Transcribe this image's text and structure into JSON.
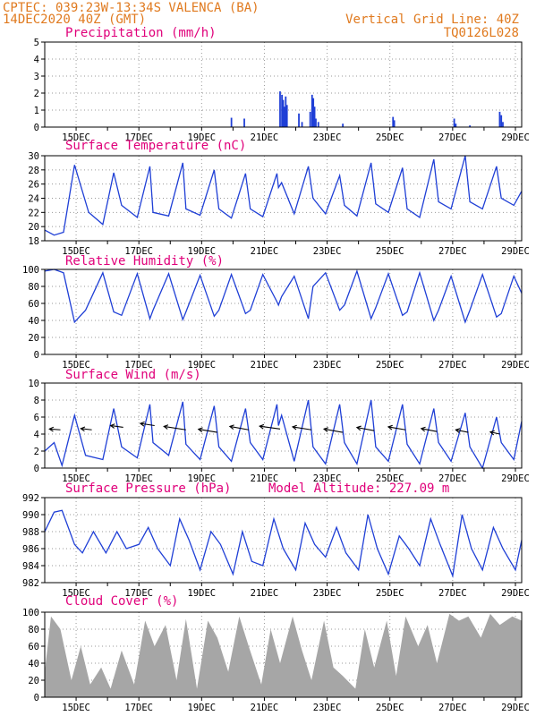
{
  "header": {
    "left_line1": "CPTEC:   039:23W-13:34S  VALENCA (BA)",
    "left_line2": "14DEC2020 40Z (GMT)",
    "right_line1": "Vertical Grid Line: 40Z",
    "right_line2": "TQ0126L028"
  },
  "x_tick_labels": [
    "15DEC",
    "17DEC",
    "19DEC",
    "21DEC",
    "23DEC",
    "25DEC",
    "27DEC",
    "29DEC"
  ],
  "colors": {
    "series": "#1f3fd6",
    "title": "#e0007a",
    "header": "#e07a1f",
    "cloud": "#a6a6a6"
  },
  "chart_data": [
    {
      "id": "precip",
      "type": "bar",
      "title": "Precipitation (mm/h)",
      "xlabel": "",
      "ylabel": "mm/h",
      "ylim": [
        0,
        5
      ],
      "yticks": [
        0,
        1,
        2,
        3,
        4,
        5
      ],
      "x_unit": "days since 14DEC 00Z",
      "x": [
        5.95,
        6.36,
        7.5,
        7.56,
        7.6,
        7.64,
        7.68,
        7.72,
        8.1,
        8.2,
        8.46,
        8.52,
        8.56,
        8.6,
        8.64,
        8.72,
        9.5,
        11.1,
        11.14,
        13.05,
        13.1,
        14.5,
        14.55,
        14.6,
        13.55
      ],
      "values": [
        0.55,
        0.5,
        2.1,
        1.9,
        1.6,
        1.2,
        1.8,
        1.3,
        0.8,
        0.3,
        0.9,
        1.9,
        1.7,
        1.2,
        0.5,
        0.3,
        0.2,
        0.6,
        0.4,
        0.5,
        0.2,
        0.9,
        0.7,
        0.3,
        0.1
      ]
    },
    {
      "id": "temperature",
      "type": "line",
      "title": "Surface Temperature (nC)",
      "xlabel": "",
      "ylabel": "nC",
      "ylim": [
        18,
        30
      ],
      "yticks": [
        18,
        20,
        22,
        24,
        26,
        28,
        30
      ],
      "x": [
        0,
        0.3,
        0.6,
        0.95,
        1.4,
        1.85,
        2.2,
        2.45,
        2.95,
        3.35,
        3.45,
        3.95,
        4.4,
        4.5,
        4.95,
        5.4,
        5.55,
        5.95,
        6.4,
        6.55,
        6.95,
        7.4,
        7.45,
        7.55,
        7.95,
        8.4,
        8.55,
        8.95,
        9.4,
        9.55,
        9.95,
        10.4,
        10.55,
        10.95,
        11.4,
        11.55,
        11.95,
        12.4,
        12.55,
        12.95,
        13.4,
        13.55,
        13.95,
        14.4,
        14.55,
        14.95,
        15.2
      ],
      "values": [
        19.5,
        18.8,
        19.2,
        28.7,
        22.0,
        20.3,
        27.6,
        23.0,
        21.3,
        28.5,
        22.0,
        21.5,
        29.0,
        22.5,
        21.6,
        28.0,
        22.5,
        21.2,
        27.5,
        22.5,
        21.4,
        27.5,
        25.5,
        26.2,
        21.8,
        28.5,
        24.0,
        21.8,
        27.2,
        23.0,
        21.5,
        29.0,
        23.2,
        22.0,
        28.3,
        22.5,
        21.3,
        29.5,
        23.5,
        22.5,
        30.0,
        23.5,
        22.5,
        28.5,
        24.0,
        23.0,
        25.0
      ]
    },
    {
      "id": "humidity",
      "type": "line",
      "title": "Relative Humidity (%)",
      "xlabel": "",
      "ylabel": "%",
      "ylim": [
        0,
        100
      ],
      "yticks": [
        0,
        20,
        40,
        60,
        80,
        100
      ],
      "x": [
        0,
        0.3,
        0.6,
        0.95,
        1.3,
        1.85,
        2.2,
        2.45,
        2.95,
        3.35,
        3.45,
        3.95,
        4.4,
        4.5,
        4.95,
        5.4,
        5.55,
        5.95,
        6.4,
        6.55,
        6.95,
        7.4,
        7.45,
        7.55,
        7.95,
        8.4,
        8.55,
        8.95,
        9.4,
        9.55,
        9.95,
        10.4,
        10.55,
        10.95,
        11.4,
        11.55,
        11.95,
        12.4,
        12.55,
        12.95,
        13.4,
        13.55,
        13.95,
        14.4,
        14.55,
        14.95,
        15.2
      ],
      "values": [
        98,
        100,
        96,
        38,
        52,
        96,
        50,
        46,
        95,
        42,
        52,
        95,
        41,
        50,
        93,
        45,
        52,
        94,
        48,
        52,
        94,
        62,
        58,
        68,
        92,
        42,
        80,
        96,
        52,
        58,
        98,
        42,
        55,
        95,
        46,
        50,
        96,
        40,
        52,
        92,
        38,
        52,
        94,
        44,
        48,
        92,
        72
      ]
    },
    {
      "id": "wind",
      "type": "line",
      "title": "Surface Wind (m/s)",
      "xlabel": "",
      "ylabel": "m/s",
      "ylim": [
        0,
        10
      ],
      "yticks": [
        0,
        2,
        4,
        6,
        8,
        10
      ],
      "x": [
        0,
        0.3,
        0.55,
        0.95,
        1.3,
        1.85,
        2.2,
        2.45,
        2.95,
        3.35,
        3.45,
        3.95,
        4.4,
        4.5,
        4.95,
        5.4,
        5.55,
        5.95,
        6.4,
        6.55,
        6.95,
        7.4,
        7.45,
        7.55,
        7.95,
        8.4,
        8.55,
        8.95,
        9.4,
        9.55,
        9.95,
        10.4,
        10.55,
        10.95,
        11.4,
        11.55,
        11.95,
        12.4,
        12.55,
        12.95,
        13.4,
        13.55,
        13.95,
        14.4,
        14.55,
        14.95,
        15.2
      ],
      "values": [
        2.0,
        3.0,
        0.3,
        6.2,
        1.5,
        1.0,
        7.0,
        2.5,
        1.2,
        7.5,
        3.0,
        1.5,
        7.8,
        2.8,
        1.0,
        7.3,
        2.5,
        0.8,
        7.0,
        3.0,
        1.0,
        7.5,
        5.0,
        6.2,
        0.8,
        8.0,
        2.5,
        0.5,
        7.5,
        3.0,
        0.5,
        8.0,
        2.5,
        0.8,
        7.5,
        2.8,
        0.5,
        7.0,
        3.0,
        0.8,
        6.5,
        2.5,
        0.0,
        6.0,
        3.0,
        1.0,
        5.5
      ],
      "arrows": {
        "x": [
          0.5,
          1.5,
          2.5,
          3.5,
          4.5,
          5.5,
          6.5,
          7.5,
          8.5,
          9.5,
          10.5,
          11.5,
          12.5,
          13.5,
          14.5
        ],
        "speed": [
          4.5,
          4.5,
          4.8,
          5.0,
          4.5,
          4.2,
          4.5,
          4.6,
          4.5,
          4.2,
          4.4,
          4.5,
          4.3,
          4.2,
          4.0
        ],
        "dx": [
          -0.35,
          -0.35,
          -0.4,
          -0.45,
          -0.7,
          -0.6,
          -0.6,
          -0.65,
          -0.6,
          -0.6,
          -0.55,
          -0.55,
          -0.5,
          -0.4,
          -0.3
        ],
        "dy": [
          0.4,
          0.6,
          0.8,
          1.0,
          1.6,
          1.5,
          1.6,
          1.3,
          1.4,
          1.6,
          1.5,
          1.4,
          1.4,
          1.2,
          1.0
        ]
      }
    },
    {
      "id": "pressure",
      "type": "line",
      "title": "Surface Pressure (hPa)",
      "subtitle": "Model Altitude: 227.09 m",
      "xlabel": "",
      "ylabel": "hPa",
      "ylim": [
        982,
        992
      ],
      "yticks": [
        982,
        984,
        986,
        988,
        990,
        992
      ],
      "x": [
        0,
        0.3,
        0.55,
        0.95,
        1.2,
        1.55,
        1.95,
        2.3,
        2.6,
        3.0,
        3.3,
        3.6,
        4.0,
        4.3,
        4.6,
        4.95,
        5.3,
        5.6,
        6.0,
        6.3,
        6.6,
        6.95,
        7.3,
        7.6,
        8.0,
        8.3,
        8.6,
        8.95,
        9.3,
        9.6,
        10.0,
        10.3,
        10.6,
        10.95,
        11.3,
        11.6,
        11.95,
        12.3,
        12.6,
        13.0,
        13.3,
        13.6,
        13.95,
        14.3,
        14.6,
        15.0,
        15.2
      ],
      "values": [
        988.0,
        990.3,
        990.5,
        986.5,
        985.5,
        988.0,
        985.5,
        988.0,
        986.0,
        986.5,
        988.5,
        986.0,
        984.0,
        989.5,
        987.0,
        983.5,
        988.0,
        986.5,
        983.0,
        988.0,
        984.5,
        984.0,
        989.5,
        986.0,
        983.5,
        989.0,
        986.5,
        985.0,
        988.5,
        985.5,
        983.5,
        990.0,
        986.0,
        983.0,
        987.5,
        986.0,
        984.0,
        989.5,
        986.5,
        982.8,
        990.0,
        986.0,
        983.5,
        988.5,
        986.0,
        983.5,
        987.0
      ]
    },
    {
      "id": "cloud",
      "type": "area",
      "title": "Cloud Cover (%)",
      "xlabel": "",
      "ylabel": "%",
      "ylim": [
        0,
        100
      ],
      "yticks": [
        0,
        20,
        40,
        60,
        80,
        100
      ],
      "x": [
        0,
        0.2,
        0.5,
        0.85,
        1.15,
        1.45,
        1.8,
        2.1,
        2.45,
        2.85,
        3.2,
        3.5,
        3.85,
        4.2,
        4.5,
        4.85,
        5.2,
        5.5,
        5.85,
        6.2,
        6.5,
        6.9,
        7.2,
        7.5,
        7.9,
        8.2,
        8.5,
        8.9,
        9.2,
        9.5,
        9.9,
        10.2,
        10.5,
        10.9,
        11.2,
        11.5,
        11.9,
        12.2,
        12.5,
        12.9,
        13.2,
        13.5,
        13.9,
        14.2,
        14.5,
        14.9,
        15.2
      ],
      "values": [
        30,
        95,
        80,
        20,
        60,
        15,
        35,
        10,
        55,
        15,
        90,
        60,
        85,
        20,
        92,
        10,
        90,
        70,
        30,
        95,
        60,
        15,
        80,
        40,
        95,
        55,
        20,
        90,
        35,
        25,
        10,
        80,
        35,
        90,
        25,
        95,
        60,
        85,
        40,
        98,
        90,
        95,
        70,
        98,
        85,
        95,
        90
      ]
    }
  ]
}
